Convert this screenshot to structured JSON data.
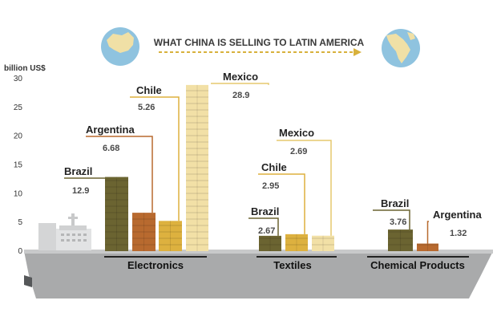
{
  "header": {
    "title": "WHAT CHINA IS SELLING TO LATIN AMERICA",
    "origin_globe_icon": "china-globe-icon",
    "destination_globe_icon": "latin-america-globe-icon",
    "arrow_icon": "dashed-arrow-icon"
  },
  "colors": {
    "title": "#3a3a3a",
    "arrow": "#d8b13c",
    "globe_water": "#8fc3df",
    "globe_land": "#f0e0a6",
    "ship_hull": "#a9aaab",
    "ship_deck": "#c8c9ca",
    "ship_dark": "#555759",
    "label_text": "#222222",
    "value_text": "#4a4a4a",
    "axis_text": "#333333"
  },
  "chart_data": {
    "type": "bar",
    "ylabel": "billion US$",
    "ylim": [
      0,
      30
    ],
    "yticks": [
      0,
      5,
      10,
      15,
      20,
      25,
      30
    ],
    "grid": false,
    "groups": [
      {
        "name": "Electronics",
        "bars": [
          {
            "country": "Brazil",
            "value": 12.9,
            "value_label": "12.9",
            "color": "#6b6431",
            "line_color": "#6b6431"
          },
          {
            "country": "Argentina",
            "value": 6.68,
            "value_label": "6.68",
            "color": "#b86a2f",
            "line_color": "#b86a2f"
          },
          {
            "country": "Chile",
            "value": 5.26,
            "value_label": "5.26",
            "color": "#ddb13f",
            "line_color": "#ddb13f"
          },
          {
            "country": "Mexico",
            "value": 28.9,
            "value_label": "28.9",
            "color": "#f2e0a6",
            "line_color": "#e6c96f"
          }
        ]
      },
      {
        "name": "Textiles",
        "bars": [
          {
            "country": "Brazil",
            "value": 2.67,
            "value_label": "2.67",
            "color": "#6b6431",
            "line_color": "#6b6431"
          },
          {
            "country": "Chile",
            "value": 2.95,
            "value_label": "2.95",
            "color": "#ddb13f",
            "line_color": "#ddb13f"
          },
          {
            "country": "Mexico",
            "value": 2.69,
            "value_label": "2.69",
            "color": "#f2e0a6",
            "line_color": "#e6c96f"
          }
        ]
      },
      {
        "name": "Chemical Products",
        "bars": [
          {
            "country": "Brazil",
            "value": 3.76,
            "value_label": "3.76",
            "color": "#6b6431",
            "line_color": "#6b6431"
          },
          {
            "country": "Argentina",
            "value": 1.32,
            "value_label": "1.32",
            "color": "#b86a2f",
            "line_color": "#b86a2f"
          }
        ]
      }
    ]
  }
}
